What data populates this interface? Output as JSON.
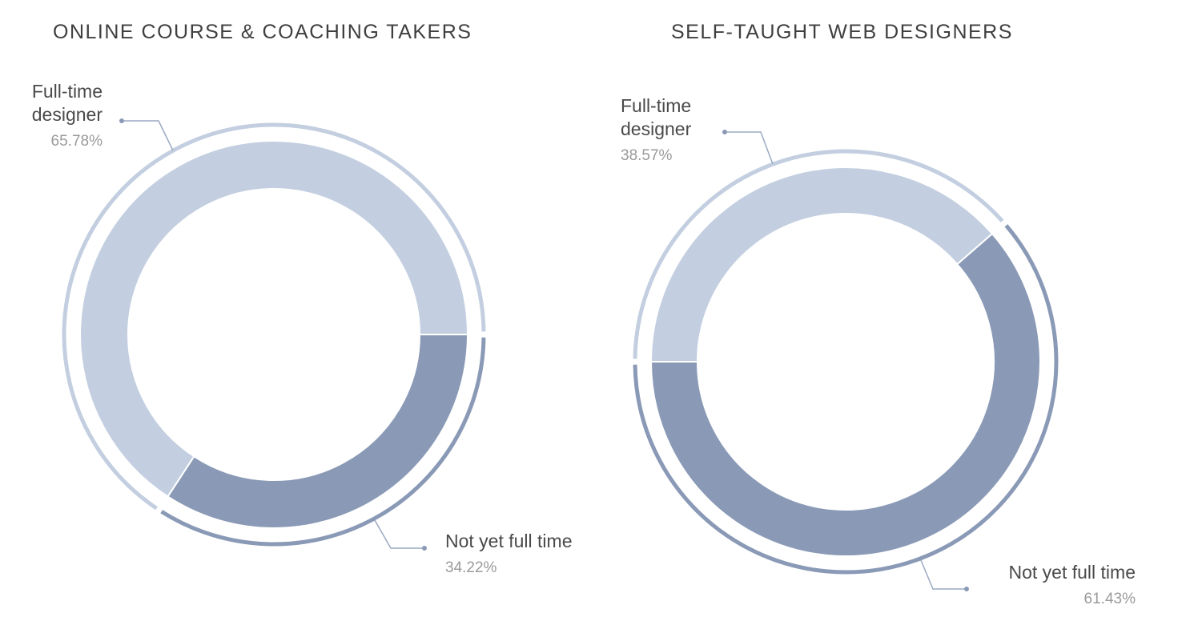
{
  "chart_data": [
    {
      "type": "donut",
      "title": "ONLINE COURSE & COACHING TAKERS",
      "categories": [
        "Full-time designer",
        "Not yet full time"
      ],
      "values": [
        65.78,
        34.22
      ],
      "value_labels": [
        "65.78%",
        "34.22%"
      ],
      "colors": [
        "#c3cfe0",
        "#8a9ab6"
      ]
    },
    {
      "type": "donut",
      "title": "SELF-TAUGHT WEB DESIGNERS",
      "categories": [
        "Full-time designer",
        "Not yet full time"
      ],
      "values": [
        38.57,
        61.43
      ],
      "value_labels": [
        "38.57%",
        "61.43%"
      ],
      "colors": [
        "#c3cfe0",
        "#8a9ab6"
      ]
    }
  ]
}
